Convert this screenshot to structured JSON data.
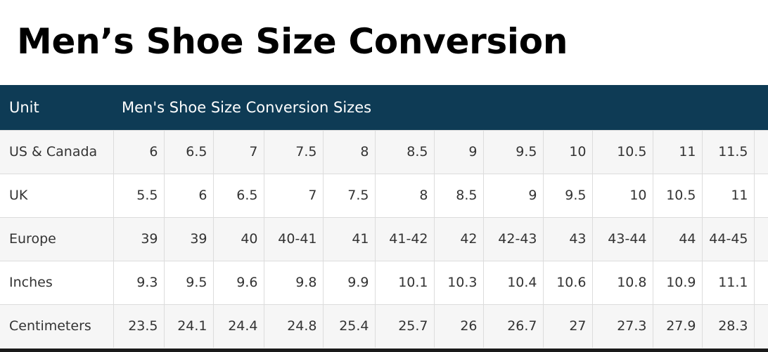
{
  "title": "Men’s Shoe Size Conversion",
  "table": {
    "header_unit": "Unit",
    "header_sizes": "Men's Shoe Size Conversion Sizes",
    "rows": [
      {
        "label": "US & Canada",
        "cells": [
          "6",
          "6.5",
          "7",
          "7.5",
          "8",
          "8.5",
          "9",
          "9.5",
          "10",
          "10.5",
          "11",
          "11.5"
        ]
      },
      {
        "label": "UK",
        "cells": [
          "5.5",
          "6",
          "6.5",
          "7",
          "7.5",
          "8",
          "8.5",
          "9",
          "9.5",
          "10",
          "10.5",
          "11"
        ]
      },
      {
        "label": "Europe",
        "cells": [
          "39",
          "39",
          "40",
          "40-41",
          "41",
          "41-42",
          "42",
          "42-43",
          "43",
          "43-44",
          "44",
          "44-45"
        ]
      },
      {
        "label": "Inches",
        "cells": [
          "9.3",
          "9.5",
          "9.6",
          "9.8",
          "9.9",
          "10.1",
          "10.3",
          "10.4",
          "10.6",
          "10.8",
          "10.9",
          "11.1"
        ]
      },
      {
        "label": "Centimeters",
        "cells": [
          "23.5",
          "24.1",
          "24.4",
          "24.8",
          "25.4",
          "25.7",
          "26",
          "26.7",
          "27",
          "27.3",
          "27.9",
          "28.3"
        ]
      }
    ]
  }
}
